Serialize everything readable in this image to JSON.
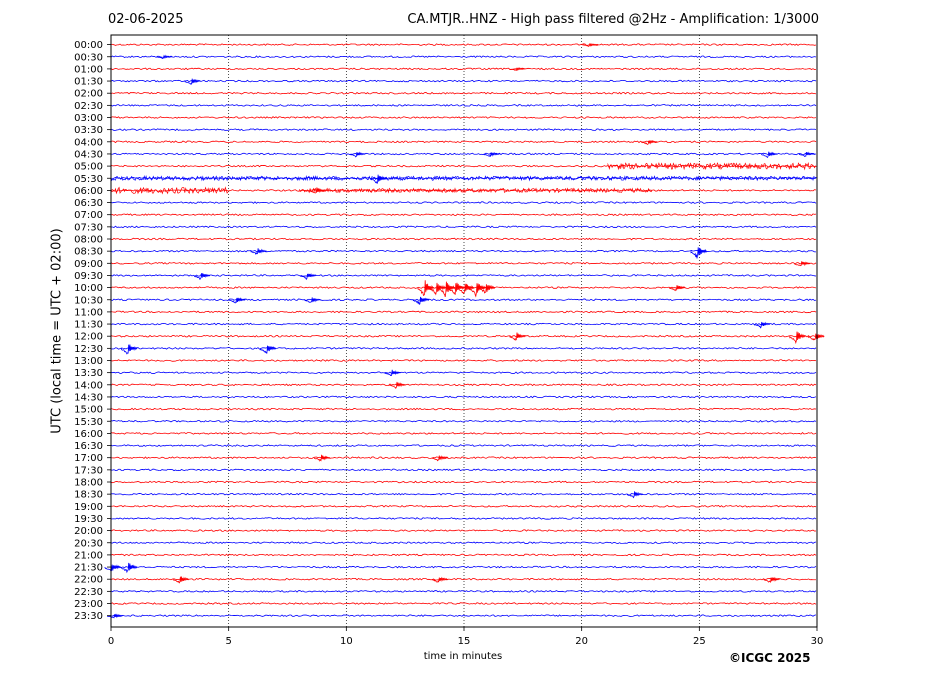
{
  "header": {
    "date": "02-06-2025",
    "title": "CA.MTJR..HNZ - High pass filtered @2Hz - Amplification: 1/3000"
  },
  "footer": {
    "copyright": "©ICGC 2025"
  },
  "chart_data": {
    "type": "line",
    "title": "CA.MTJR..HNZ - High pass filtered @2Hz - Amplification: 1/3000",
    "xlabel": "time in minutes",
    "ylabel": "UTC (local time = UTC + 02:00)",
    "xlim": [
      0,
      30
    ],
    "xticks": [
      0,
      5,
      10,
      15,
      20,
      25,
      30
    ],
    "grid": "vertical dotted lines at x = 5, 10, 15, 20, 25",
    "trace_colors": [
      "#ff0000",
      "#0000ff"
    ],
    "rows": [
      "00:00",
      "00:30",
      "01:00",
      "01:30",
      "02:00",
      "02:30",
      "03:00",
      "03:30",
      "04:00",
      "04:30",
      "05:00",
      "05:30",
      "06:00",
      "06:30",
      "07:00",
      "07:30",
      "08:00",
      "08:30",
      "09:00",
      "09:30",
      "10:00",
      "10:30",
      "11:00",
      "11:30",
      "12:00",
      "12:30",
      "13:00",
      "13:30",
      "14:00",
      "14:30",
      "15:00",
      "15:30",
      "16:00",
      "16:30",
      "17:00",
      "17:30",
      "18:00",
      "18:30",
      "19:00",
      "19:30",
      "20:00",
      "20:30",
      "21:00",
      "21:30",
      "22:00",
      "22:30",
      "23:00",
      "23:30"
    ],
    "events": [
      {
        "row": 0,
        "t": 20.3,
        "amp": 2
      },
      {
        "row": 1,
        "t": 2.2,
        "amp": 2
      },
      {
        "row": 2,
        "t": 17.2,
        "amp": 2
      },
      {
        "row": 3,
        "t": 3.4,
        "amp": 4
      },
      {
        "row": 8,
        "t": 22.8,
        "amp": 3
      },
      {
        "row": 9,
        "t": 10.4,
        "amp": 3
      },
      {
        "row": 9,
        "t": 16.1,
        "amp": 3
      },
      {
        "row": 9,
        "t": 27.9,
        "amp": 4
      },
      {
        "row": 9,
        "t": 29.5,
        "amp": 3
      },
      {
        "row": 11,
        "t": 11.3,
        "amp": 6
      },
      {
        "row": 12,
        "t": 8.7,
        "amp": 4
      },
      {
        "row": 17,
        "t": 6.2,
        "amp": 4
      },
      {
        "row": 17,
        "t": 24.9,
        "amp": 8
      },
      {
        "row": 18,
        "t": 29.3,
        "amp": 4
      },
      {
        "row": 19,
        "t": 3.8,
        "amp": 5
      },
      {
        "row": 19,
        "t": 8.3,
        "amp": 4
      },
      {
        "row": 20,
        "t": 13.3,
        "amp": 10
      },
      {
        "row": 20,
        "t": 13.8,
        "amp": 8
      },
      {
        "row": 20,
        "t": 14.2,
        "amp": 10
      },
      {
        "row": 20,
        "t": 14.6,
        "amp": 9
      },
      {
        "row": 20,
        "t": 15.0,
        "amp": 8
      },
      {
        "row": 20,
        "t": 15.5,
        "amp": 9
      },
      {
        "row": 20,
        "t": 15.9,
        "amp": 7
      },
      {
        "row": 20,
        "t": 24.0,
        "amp": 4
      },
      {
        "row": 21,
        "t": 5.3,
        "amp": 4
      },
      {
        "row": 21,
        "t": 8.5,
        "amp": 4
      },
      {
        "row": 21,
        "t": 13.1,
        "amp": 5
      },
      {
        "row": 23,
        "t": 27.6,
        "amp": 4
      },
      {
        "row": 24,
        "t": 17.2,
        "amp": 5
      },
      {
        "row": 24,
        "t": 29.1,
        "amp": 8
      },
      {
        "row": 24,
        "t": 29.9,
        "amp": 6
      },
      {
        "row": 25,
        "t": 0.7,
        "amp": 7
      },
      {
        "row": 25,
        "t": 6.6,
        "amp": 7
      },
      {
        "row": 27,
        "t": 11.9,
        "amp": 4
      },
      {
        "row": 28,
        "t": 12.1,
        "amp": 4
      },
      {
        "row": 34,
        "t": 8.9,
        "amp": 4
      },
      {
        "row": 34,
        "t": 13.9,
        "amp": 4
      },
      {
        "row": 37,
        "t": 22.2,
        "amp": 4
      },
      {
        "row": 43,
        "t": 0.0,
        "amp": 6
      },
      {
        "row": 43,
        "t": 0.7,
        "amp": 7
      },
      {
        "row": 44,
        "t": 2.9,
        "amp": 5
      },
      {
        "row": 44,
        "t": 13.9,
        "amp": 4
      },
      {
        "row": 44,
        "t": 28.0,
        "amp": 4
      },
      {
        "row": 47,
        "t": 0.1,
        "amp": 3
      }
    ],
    "noise_bands": [
      {
        "row": 10,
        "t0": 21.1,
        "t1": 30.0,
        "amp": 3
      },
      {
        "row": 11,
        "t0": 0.0,
        "t1": 30.0,
        "amp": 2
      },
      {
        "row": 12,
        "t0": 0.0,
        "t1": 5.0,
        "amp": 3
      },
      {
        "row": 12,
        "t0": 8.0,
        "t1": 23.0,
        "amp": 2
      }
    ]
  }
}
